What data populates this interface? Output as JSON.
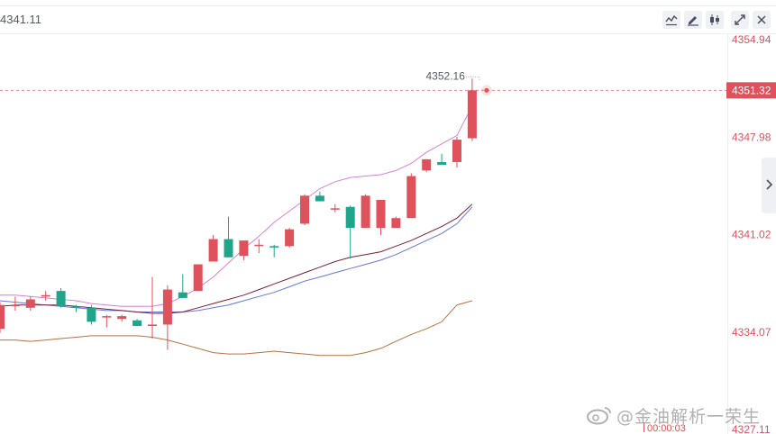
{
  "header": {
    "price_readout": "4341.11",
    "tools": [
      "line-chart-icon",
      "pencil-icon",
      "candlestick-icon",
      "expand-icon",
      "close-icon"
    ]
  },
  "watermark": {
    "text": "@金油解析一荣生",
    "icon": "weibo-icon"
  },
  "countdown": "00:00:03",
  "colors": {
    "up": "#e0525b",
    "down": "#1fa58a",
    "ma_dark": "#7a1f36",
    "ma_blue": "#6477e0",
    "band_upper": "#d77fd5",
    "band_lower": "#b87042",
    "price_line": "#e07a80",
    "axis_text": "#e0525b"
  },
  "chart_data": {
    "type": "candlestick",
    "price_axis": {
      "ylim": [
        4327.11,
        4354.94
      ],
      "ticks": [
        "4354.94",
        "4347.98",
        "4341.02",
        "4334.07",
        "4327.11"
      ]
    },
    "current_price": {
      "value": 4351.32,
      "label": "4351.32"
    },
    "high_marker": {
      "value": 4352.16,
      "label": "4352.16"
    },
    "candles": [
      {
        "o": 4334.3,
        "h": 4336.2,
        "l": 4334.0,
        "c": 4336.0
      },
      {
        "o": 4336.0,
        "h": 4336.6,
        "l": 4335.6,
        "c": 4336.0
      },
      {
        "o": 4335.8,
        "h": 4336.6,
        "l": 4335.6,
        "c": 4336.4
      },
      {
        "o": 4336.6,
        "h": 4337.0,
        "l": 4336.3,
        "c": 4336.7
      },
      {
        "o": 4337.0,
        "h": 4337.2,
        "l": 4335.8,
        "c": 4335.9
      },
      {
        "o": 4335.9,
        "h": 4336.0,
        "l": 4335.5,
        "c": 4335.8
      },
      {
        "o": 4335.8,
        "h": 4336.0,
        "l": 4334.6,
        "c": 4334.8
      },
      {
        "o": 4335.2,
        "h": 4335.3,
        "l": 4334.4,
        "c": 4335.2
      },
      {
        "o": 4335.0,
        "h": 4335.3,
        "l": 4334.8,
        "c": 4335.2
      },
      {
        "o": 4334.9,
        "h": 4335.0,
        "l": 4334.5,
        "c": 4334.5
      },
      {
        "o": 4334.5,
        "h": 4338.0,
        "l": 4333.6,
        "c": 4334.6
      },
      {
        "o": 4334.6,
        "h": 4337.4,
        "l": 4332.8,
        "c": 4337.1
      },
      {
        "o": 4336.9,
        "h": 4338.2,
        "l": 4336.5,
        "c": 4336.5
      },
      {
        "o": 4337.0,
        "h": 4338.9,
        "l": 4337.0,
        "c": 4338.9
      },
      {
        "o": 4339.1,
        "h": 4341.0,
        "l": 4339.1,
        "c": 4340.7
      },
      {
        "o": 4340.7,
        "h": 4342.3,
        "l": 4339.4,
        "c": 4339.4
      },
      {
        "o": 4339.5,
        "h": 4340.5,
        "l": 4339.2,
        "c": 4340.6
      },
      {
        "o": 4340.3,
        "h": 4340.7,
        "l": 4339.7,
        "c": 4340.3
      },
      {
        "o": 4340.2,
        "h": 4340.3,
        "l": 4339.4,
        "c": 4340.1
      },
      {
        "o": 4340.2,
        "h": 4341.5,
        "l": 4340.1,
        "c": 4341.4
      },
      {
        "o": 4341.8,
        "h": 4343.9,
        "l": 4341.7,
        "c": 4343.8
      },
      {
        "o": 4343.8,
        "h": 4344.1,
        "l": 4343.4,
        "c": 4343.4
      },
      {
        "o": 4342.9,
        "h": 4343.2,
        "l": 4342.6,
        "c": 4342.9
      },
      {
        "o": 4343.0,
        "h": 4343.1,
        "l": 4339.3,
        "c": 4341.5
      },
      {
        "o": 4341.5,
        "h": 4343.9,
        "l": 4341.5,
        "c": 4343.8
      },
      {
        "o": 4341.5,
        "h": 4343.5,
        "l": 4341.0,
        "c": 4343.5
      },
      {
        "o": 4341.5,
        "h": 4342.3,
        "l": 4341.5,
        "c": 4342.2
      },
      {
        "o": 4342.2,
        "h": 4345.4,
        "l": 4342.2,
        "c": 4345.2
      },
      {
        "o": 4345.6,
        "h": 4346.4,
        "l": 4345.5,
        "c": 4346.4
      },
      {
        "o": 4346.2,
        "h": 4346.8,
        "l": 4346.0,
        "c": 4346.0
      },
      {
        "o": 4346.2,
        "h": 4348.0,
        "l": 4345.8,
        "c": 4347.8
      },
      {
        "o": 4347.9,
        "h": 4352.16,
        "l": 4347.7,
        "c": 4351.32
      }
    ],
    "band_upper": [
      4336.7,
      4336.7,
      4336.6,
      4336.5,
      4336.4,
      4336.3,
      4336.1,
      4336.0,
      4335.9,
      4335.9,
      4335.9,
      4336.1,
      4336.6,
      4337.2,
      4338.0,
      4339.0,
      4340.0,
      4340.9,
      4341.9,
      4342.7,
      4343.5,
      4344.3,
      4344.8,
      4345.1,
      4345.2,
      4345.3,
      4345.6,
      4346.1,
      4346.9,
      4347.5,
      4348.1,
      4350.2
    ],
    "band_lower": [
      4333.5,
      4333.5,
      4333.4,
      4333.5,
      4333.6,
      4333.7,
      4333.8,
      4333.8,
      4333.8,
      4333.8,
      4333.7,
      4333.5,
      4333.2,
      4332.9,
      4332.6,
      4332.5,
      4332.5,
      4332.6,
      4332.7,
      4332.6,
      4332.5,
      4332.4,
      4332.4,
      4332.4,
      4332.6,
      4332.9,
      4333.4,
      4333.9,
      4334.3,
      4334.8,
      4336.0,
      4336.3
    ],
    "ma_dark": [
      4335.9,
      4336.0,
      4336.0,
      4336.0,
      4336.0,
      4335.9,
      4335.8,
      4335.7,
      4335.6,
      4335.5,
      4335.4,
      4335.4,
      4335.5,
      4335.8,
      4336.1,
      4336.4,
      4336.7,
      4337.1,
      4337.5,
      4337.9,
      4338.3,
      4338.7,
      4339.1,
      4339.4,
      4339.6,
      4339.8,
      4340.2,
      4340.6,
      4341.1,
      4341.6,
      4342.2,
      4343.2
    ],
    "ma_blue": [
      4336.3,
      4336.2,
      4336.1,
      4336.0,
      4335.9,
      4335.8,
      4335.7,
      4335.6,
      4335.6,
      4335.5,
      4335.5,
      4335.5,
      4335.5,
      4335.6,
      4335.8,
      4336.0,
      4336.3,
      4336.6,
      4336.9,
      4337.3,
      4337.7,
      4338.0,
      4338.3,
      4338.6,
      4338.9,
      4339.2,
      4339.6,
      4340.1,
      4340.6,
      4341.1,
      4341.8,
      4343.0
    ]
  }
}
